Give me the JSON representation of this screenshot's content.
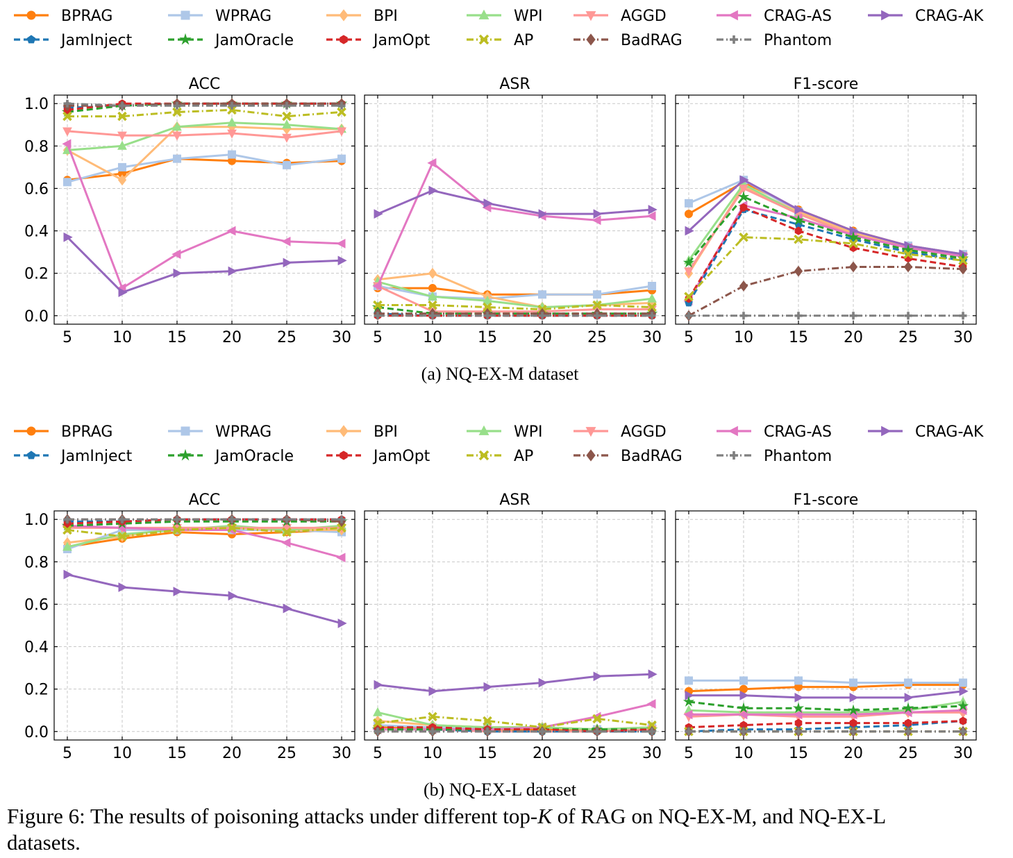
{
  "figure": {
    "sub_captions": [
      "(a) NQ-EX-M dataset",
      "(b) NQ-EX-L dataset"
    ],
    "caption": {
      "line1_before": "Figure 6: The results of poisoning attacks under different top-",
      "line1_var": "K",
      "line1_after": " of RAG on NQ-EX-M, and NQ-EX-L",
      "line2": "datasets."
    }
  },
  "legend": [
    {
      "name": "BPRAG",
      "color": "#ff7f0e",
      "marker": "circle",
      "dash": "solid"
    },
    {
      "name": "WPRAG",
      "color": "#aec7e8",
      "marker": "square",
      "dash": "solid"
    },
    {
      "name": "BPI",
      "color": "#ffbb78",
      "marker": "diamond",
      "dash": "solid"
    },
    {
      "name": "WPI",
      "color": "#98df8a",
      "marker": "triangle-up",
      "dash": "solid"
    },
    {
      "name": "AGGD",
      "color": "#ff9896",
      "marker": "triangle-down",
      "dash": "solid"
    },
    {
      "name": "CRAG-AS",
      "color": "#e377c2",
      "marker": "triangle-left",
      "dash": "solid"
    },
    {
      "name": "CRAG-AK",
      "color": "#9467bd",
      "marker": "triangle-right",
      "dash": "solid"
    },
    {
      "name": "JamInject",
      "color": "#1f77b4",
      "marker": "pentagon",
      "dash": "dash"
    },
    {
      "name": "JamOracle",
      "color": "#2ca02c",
      "marker": "star",
      "dash": "dash"
    },
    {
      "name": "JamOpt",
      "color": "#d62728",
      "marker": "hexagon",
      "dash": "dash"
    },
    {
      "name": "AP",
      "color": "#bcbd22",
      "marker": "x",
      "dash": "dashdot"
    },
    {
      "name": "BadRAG",
      "color": "#8c564b",
      "marker": "diamond",
      "dash": "dashdot"
    },
    {
      "name": "Phantom",
      "color": "#7f7f7f",
      "marker": "plus",
      "dash": "dashdot"
    }
  ],
  "chart_data": [
    {
      "type": "line",
      "dataset": "NQ-EX-M",
      "title": "ACC",
      "x": [
        5,
        10,
        15,
        20,
        25,
        30
      ],
      "ylim": [
        -0.04,
        1.04
      ],
      "yticks": [
        "0.0",
        "0.2",
        "0.4",
        "0.6",
        "0.8",
        "1.0"
      ],
      "grid": true,
      "series": [
        {
          "name": "BPRAG",
          "values": [
            0.64,
            0.67,
            0.74,
            0.73,
            0.72,
            0.73
          ]
        },
        {
          "name": "WPRAG",
          "values": [
            0.63,
            0.7,
            0.74,
            0.76,
            0.71,
            0.74
          ]
        },
        {
          "name": "BPI",
          "values": [
            0.78,
            0.64,
            0.89,
            0.89,
            0.88,
            0.88
          ]
        },
        {
          "name": "WPI",
          "values": [
            0.78,
            0.8,
            0.89,
            0.91,
            0.9,
            0.88
          ]
        },
        {
          "name": "AGGD",
          "values": [
            0.87,
            0.85,
            0.85,
            0.86,
            0.84,
            0.87
          ]
        },
        {
          "name": "CRAG-AS",
          "values": [
            0.81,
            0.13,
            0.29,
            0.4,
            0.35,
            0.34
          ]
        },
        {
          "name": "CRAG-AK",
          "values": [
            0.37,
            0.11,
            0.2,
            0.21,
            0.25,
            0.26
          ]
        },
        {
          "name": "JamInject",
          "values": [
            0.98,
            0.99,
            1.0,
            1.0,
            1.0,
            1.0
          ]
        },
        {
          "name": "JamOracle",
          "values": [
            0.96,
            0.99,
            1.0,
            1.0,
            1.0,
            1.0
          ]
        },
        {
          "name": "JamOpt",
          "values": [
            0.97,
            1.0,
            1.0,
            1.0,
            1.0,
            1.0
          ]
        },
        {
          "name": "AP",
          "values": [
            0.94,
            0.94,
            0.96,
            0.97,
            0.94,
            0.96
          ]
        },
        {
          "name": "BadRAG",
          "values": [
            0.99,
            0.99,
            1.0,
            1.0,
            1.0,
            1.0
          ]
        },
        {
          "name": "Phantom",
          "values": [
            1.0,
            0.99,
            0.99,
            0.99,
            0.99,
            0.99
          ]
        }
      ]
    },
    {
      "type": "line",
      "dataset": "NQ-EX-M",
      "title": "ASR",
      "x": [
        5,
        10,
        15,
        20,
        25,
        30
      ],
      "ylim": [
        -0.04,
        1.04
      ],
      "grid": true,
      "series": [
        {
          "name": "BPRAG",
          "values": [
            0.13,
            0.13,
            0.1,
            0.1,
            0.1,
            0.12
          ]
        },
        {
          "name": "WPRAG",
          "values": [
            0.14,
            0.09,
            0.08,
            0.1,
            0.1,
            0.14
          ]
        },
        {
          "name": "BPI",
          "values": [
            0.17,
            0.2,
            0.09,
            0.04,
            0.05,
            0.06
          ]
        },
        {
          "name": "WPI",
          "values": [
            0.16,
            0.09,
            0.07,
            0.04,
            0.05,
            0.08
          ]
        },
        {
          "name": "AGGD",
          "values": [
            0.14,
            0.02,
            0.02,
            0.02,
            0.03,
            0.03
          ]
        },
        {
          "name": "CRAG-AS",
          "values": [
            0.14,
            0.72,
            0.51,
            0.47,
            0.45,
            0.47
          ]
        },
        {
          "name": "CRAG-AK",
          "values": [
            0.48,
            0.59,
            0.53,
            0.48,
            0.48,
            0.5
          ]
        },
        {
          "name": "JamInject",
          "values": [
            0.01,
            0.0,
            0.0,
            0.0,
            0.0,
            0.0
          ]
        },
        {
          "name": "JamOracle",
          "values": [
            0.04,
            0.01,
            0.01,
            0.01,
            0.01,
            0.01
          ]
        },
        {
          "name": "JamOpt",
          "values": [
            0.0,
            0.0,
            0.0,
            0.0,
            0.0,
            0.0
          ]
        },
        {
          "name": "AP",
          "values": [
            0.05,
            0.05,
            0.04,
            0.03,
            0.05,
            0.04
          ]
        },
        {
          "name": "BadRAG",
          "values": [
            0.01,
            0.01,
            0.01,
            0.01,
            0.01,
            0.01
          ]
        },
        {
          "name": "Phantom",
          "values": [
            0.0,
            0.0,
            0.0,
            0.0,
            0.0,
            0.0
          ]
        }
      ]
    },
    {
      "type": "line",
      "dataset": "NQ-EX-M",
      "title": "F1-score",
      "x": [
        5,
        10,
        15,
        20,
        25,
        30
      ],
      "ylim": [
        -0.04,
        1.04
      ],
      "grid": true,
      "series": [
        {
          "name": "BPRAG",
          "values": [
            0.48,
            0.63,
            0.5,
            0.4,
            0.33,
            0.29
          ]
        },
        {
          "name": "WPRAG",
          "values": [
            0.53,
            0.64,
            0.49,
            0.39,
            0.33,
            0.29
          ]
        },
        {
          "name": "BPI",
          "values": [
            0.2,
            0.61,
            0.49,
            0.39,
            0.32,
            0.28
          ]
        },
        {
          "name": "WPI",
          "values": [
            0.26,
            0.62,
            0.48,
            0.38,
            0.32,
            0.28
          ]
        },
        {
          "name": "AGGD",
          "values": [
            0.21,
            0.6,
            0.48,
            0.38,
            0.32,
            0.28
          ]
        },
        {
          "name": "CRAG-AS",
          "values": [
            0.07,
            0.52,
            0.46,
            0.38,
            0.32,
            0.28
          ]
        },
        {
          "name": "CRAG-AK",
          "values": [
            0.4,
            0.64,
            0.5,
            0.4,
            0.33,
            0.29
          ]
        },
        {
          "name": "JamInject",
          "values": [
            0.06,
            0.5,
            0.43,
            0.36,
            0.3,
            0.26
          ]
        },
        {
          "name": "JamOracle",
          "values": [
            0.25,
            0.56,
            0.45,
            0.37,
            0.31,
            0.27
          ]
        },
        {
          "name": "JamOpt",
          "values": [
            0.08,
            0.51,
            0.4,
            0.32,
            0.27,
            0.23
          ]
        },
        {
          "name": "AP",
          "values": [
            0.09,
            0.37,
            0.36,
            0.34,
            0.29,
            0.26
          ]
        },
        {
          "name": "BadRAG",
          "values": [
            0.0,
            0.14,
            0.21,
            0.23,
            0.23,
            0.22
          ]
        },
        {
          "name": "Phantom",
          "values": [
            0.0,
            0.0,
            0.0,
            0.0,
            0.0,
            0.0
          ]
        }
      ]
    },
    {
      "type": "line",
      "dataset": "NQ-EX-L",
      "title": "ACC",
      "x": [
        5,
        10,
        15,
        20,
        25,
        30
      ],
      "ylim": [
        -0.04,
        1.04
      ],
      "yticks": [
        "0.0",
        "0.2",
        "0.4",
        "0.6",
        "0.8",
        "1.0"
      ],
      "grid": true,
      "series": [
        {
          "name": "BPRAG",
          "values": [
            0.87,
            0.91,
            0.94,
            0.93,
            0.94,
            0.95
          ]
        },
        {
          "name": "WPRAG",
          "values": [
            0.86,
            0.95,
            0.95,
            0.95,
            0.95,
            0.94
          ]
        },
        {
          "name": "BPI",
          "values": [
            0.89,
            0.92,
            0.96,
            0.96,
            0.95,
            0.95
          ]
        },
        {
          "name": "WPI",
          "values": [
            0.87,
            0.93,
            0.95,
            0.97,
            0.95,
            0.97
          ]
        },
        {
          "name": "AGGD",
          "values": [
            0.96,
            0.96,
            0.96,
            0.96,
            0.96,
            0.96
          ]
        },
        {
          "name": "CRAG-AS",
          "values": [
            0.97,
            0.96,
            0.95,
            0.95,
            0.89,
            0.82
          ]
        },
        {
          "name": "CRAG-AK",
          "values": [
            0.74,
            0.68,
            0.66,
            0.64,
            0.58,
            0.51
          ]
        },
        {
          "name": "JamInject",
          "values": [
            0.99,
            0.99,
            1.0,
            1.0,
            1.0,
            1.0
          ]
        },
        {
          "name": "JamOracle",
          "values": [
            0.97,
            0.98,
            0.99,
            0.99,
            0.99,
            0.99
          ]
        },
        {
          "name": "JamOpt",
          "values": [
            0.98,
            0.99,
            1.0,
            1.0,
            1.0,
            1.0
          ]
        },
        {
          "name": "AP",
          "values": [
            0.95,
            0.92,
            0.95,
            0.96,
            0.94,
            0.96
          ]
        },
        {
          "name": "BadRAG",
          "values": [
            1.0,
            1.0,
            1.0,
            1.0,
            1.0,
            0.99
          ]
        },
        {
          "name": "Phantom",
          "values": [
            1.0,
            1.0,
            1.0,
            1.0,
            1.0,
            1.0
          ]
        }
      ]
    },
    {
      "type": "line",
      "dataset": "NQ-EX-L",
      "title": "ASR",
      "x": [
        5,
        10,
        15,
        20,
        25,
        30
      ],
      "ylim": [
        -0.04,
        1.04
      ],
      "grid": true,
      "series": [
        {
          "name": "BPRAG",
          "values": [
            0.02,
            0.02,
            0.01,
            0.01,
            0.01,
            0.01
          ]
        },
        {
          "name": "WPRAG",
          "values": [
            0.03,
            0.02,
            0.02,
            0.02,
            0.01,
            0.02
          ]
        },
        {
          "name": "BPI",
          "values": [
            0.05,
            0.03,
            0.02,
            0.02,
            0.01,
            0.02
          ]
        },
        {
          "name": "WPI",
          "values": [
            0.09,
            0.03,
            0.02,
            0.02,
            0.01,
            0.02
          ]
        },
        {
          "name": "AGGD",
          "values": [
            0.01,
            0.01,
            0.0,
            0.0,
            0.0,
            0.01
          ]
        },
        {
          "name": "CRAG-AS",
          "values": [
            0.01,
            0.01,
            0.01,
            0.02,
            0.07,
            0.13
          ]
        },
        {
          "name": "CRAG-AK",
          "values": [
            0.22,
            0.19,
            0.21,
            0.23,
            0.26,
            0.27
          ]
        },
        {
          "name": "JamInject",
          "values": [
            0.01,
            0.01,
            0.0,
            0.0,
            0.0,
            0.0
          ]
        },
        {
          "name": "JamOracle",
          "values": [
            0.01,
            0.01,
            0.01,
            0.01,
            0.01,
            0.01
          ]
        },
        {
          "name": "JamOpt",
          "values": [
            0.02,
            0.02,
            0.01,
            0.01,
            0.0,
            0.01
          ]
        },
        {
          "name": "AP",
          "values": [
            0.04,
            0.07,
            0.05,
            0.02,
            0.06,
            0.03
          ]
        },
        {
          "name": "BadRAG",
          "values": [
            0.0,
            0.0,
            0.0,
            0.0,
            0.0,
            0.0
          ]
        },
        {
          "name": "Phantom",
          "values": [
            0.0,
            0.0,
            0.0,
            0.0,
            0.0,
            0.0
          ]
        }
      ]
    },
    {
      "type": "line",
      "dataset": "NQ-EX-L",
      "title": "F1-score",
      "x": [
        5,
        10,
        15,
        20,
        25,
        30
      ],
      "ylim": [
        -0.04,
        1.04
      ],
      "grid": true,
      "series": [
        {
          "name": "BPRAG",
          "values": [
            0.19,
            0.2,
            0.21,
            0.21,
            0.22,
            0.22
          ]
        },
        {
          "name": "WPRAG",
          "values": [
            0.24,
            0.24,
            0.24,
            0.23,
            0.23,
            0.23
          ]
        },
        {
          "name": "BPI",
          "values": [
            0.08,
            0.08,
            0.08,
            0.08,
            0.09,
            0.09
          ]
        },
        {
          "name": "WPI",
          "values": [
            0.1,
            0.09,
            0.09,
            0.09,
            0.1,
            0.14
          ]
        },
        {
          "name": "AGGD",
          "values": [
            0.07,
            0.08,
            0.07,
            0.07,
            0.09,
            0.09
          ]
        },
        {
          "name": "CRAG-AS",
          "values": [
            0.08,
            0.08,
            0.08,
            0.08,
            0.09,
            0.1
          ]
        },
        {
          "name": "CRAG-AK",
          "values": [
            0.17,
            0.17,
            0.16,
            0.16,
            0.16,
            0.19
          ]
        },
        {
          "name": "JamInject",
          "values": [
            0.0,
            0.01,
            0.01,
            0.02,
            0.03,
            0.05
          ]
        },
        {
          "name": "JamOracle",
          "values": [
            0.14,
            0.11,
            0.11,
            0.1,
            0.11,
            0.12
          ]
        },
        {
          "name": "JamOpt",
          "values": [
            0.02,
            0.03,
            0.04,
            0.04,
            0.04,
            0.05
          ]
        },
        {
          "name": "AP",
          "values": [
            0.0,
            0.0,
            0.0,
            0.0,
            0.0,
            0.0
          ]
        },
        {
          "name": "BadRAG",
          "values": [
            0.0,
            0.0,
            0.0,
            0.0,
            0.0,
            0.0
          ]
        },
        {
          "name": "Phantom",
          "values": [
            0.0,
            0.0,
            0.0,
            0.0,
            0.0,
            0.0
          ]
        }
      ]
    }
  ]
}
